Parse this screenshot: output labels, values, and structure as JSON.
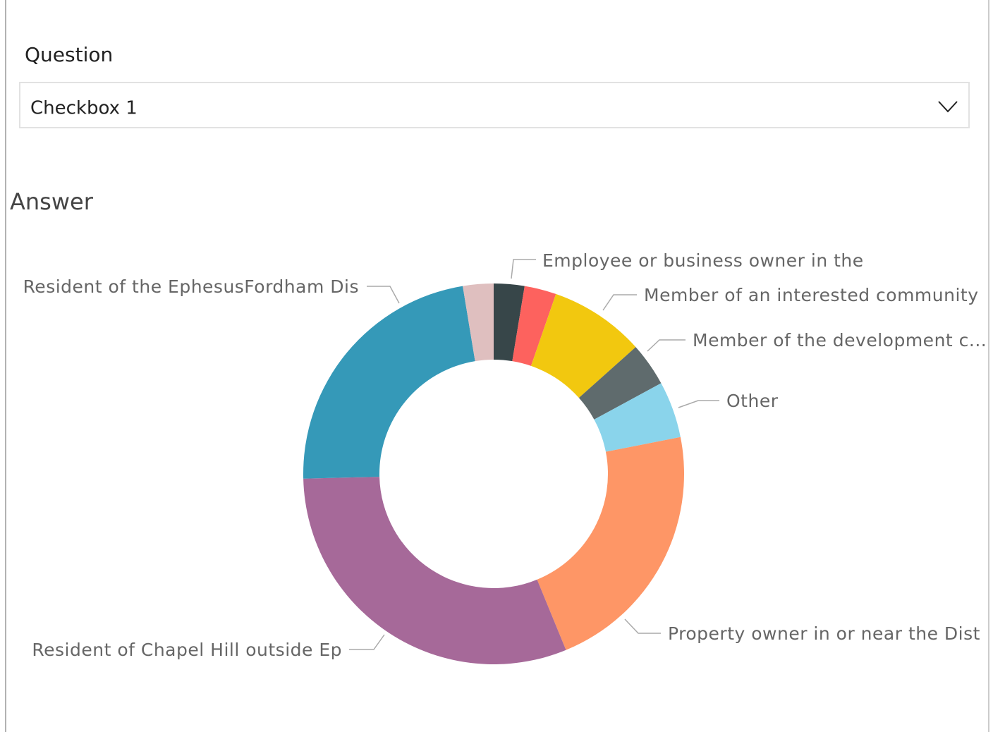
{
  "slicer": {
    "label": "Question",
    "value": "Checkbox 1"
  },
  "chart_data": {
    "type": "donut",
    "title": "Answer",
    "categories": [
      "Employee or business owner in the",
      null,
      "Member of an interested community",
      "Member of the development c...",
      "Other",
      "Property owner in or near the Dist",
      "Resident of Chapel Hill outside Ep",
      "Resident of the EphesusFordham Dis",
      null
    ],
    "values": [
      2.6,
      2.7,
      8.1,
      3.7,
      4.8,
      21.9,
      30.8,
      22.8,
      2.6
    ],
    "colors": [
      "#374649",
      "#FD625E",
      "#F2C80F",
      "#5F6B6D",
      "#8AD4EB",
      "#FE9666",
      "#A66999",
      "#3599B8",
      "#DFBFBF"
    ]
  }
}
